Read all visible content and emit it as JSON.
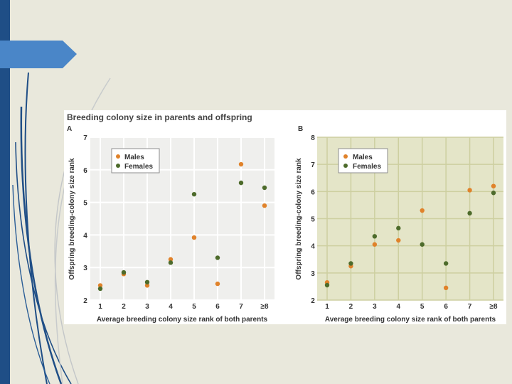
{
  "slide": {
    "figure_title": "Breeding colony size in parents and offspring",
    "colors": {
      "background": "#e9e8dc",
      "left_bar": "#1f4e86",
      "arrow": "#4a86c8",
      "males": "#e0822a",
      "females": "#4d6b2b",
      "panel_a_bg": "#efefed",
      "panel_b_bg": "#e4e5c8",
      "grid_a": "#ffffff",
      "grid_b": "#cdcfa0"
    }
  },
  "chart_data": [
    {
      "type": "scatter",
      "panel_label": "A",
      "xlabel": "Average breeding colony size rank of both parents",
      "ylabel": "Offspring breeding-colony size rank",
      "categories": [
        "1",
        "2",
        "3",
        "4",
        "5",
        "6",
        "7",
        "≥8"
      ],
      "x": [
        1,
        2,
        3,
        4,
        5,
        6,
        7,
        8
      ],
      "ylim": [
        2,
        7
      ],
      "yticks": [
        2,
        3,
        4,
        5,
        6,
        7
      ],
      "grid": true,
      "legend_position": "top-left",
      "series": [
        {
          "name": "Males",
          "values": [
            2.45,
            2.8,
            2.45,
            3.25,
            3.92,
            2.5,
            6.17,
            4.9
          ]
        },
        {
          "name": "Females",
          "values": [
            2.35,
            2.85,
            2.55,
            3.15,
            5.25,
            3.3,
            5.6,
            5.45
          ]
        }
      ]
    },
    {
      "type": "scatter",
      "panel_label": "B",
      "xlabel": "Average breeding colony size rank of both parents",
      "ylabel": "Offspring breeding-colony size rank",
      "categories": [
        "1",
        "2",
        "3",
        "4",
        "5",
        "6",
        "7",
        "≥8"
      ],
      "x": [
        1,
        2,
        3,
        4,
        5,
        6,
        7,
        8
      ],
      "ylim": [
        2,
        8
      ],
      "yticks": [
        2,
        3,
        4,
        5,
        6,
        7,
        8
      ],
      "grid": true,
      "legend_position": "top-left",
      "series": [
        {
          "name": "Males",
          "values": [
            2.65,
            3.25,
            4.05,
            4.2,
            5.3,
            2.45,
            6.05,
            6.2
          ]
        },
        {
          "name": "Females",
          "values": [
            2.55,
            3.35,
            4.35,
            4.65,
            4.05,
            3.35,
            5.2,
            5.95
          ]
        }
      ]
    }
  ]
}
